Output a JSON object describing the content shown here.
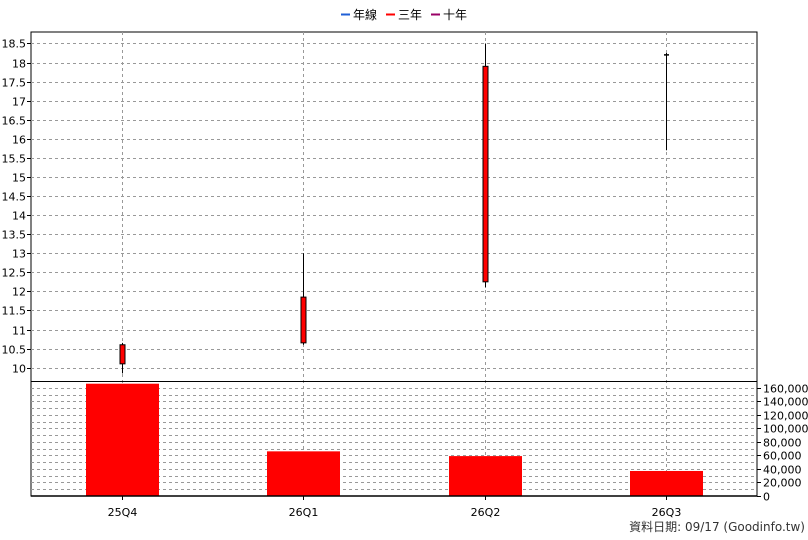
{
  "legend": [
    {
      "label": "年線",
      "color": "#1f5fd6"
    },
    {
      "label": "三年",
      "color": "#ff0000"
    },
    {
      "label": "十年",
      "color": "#990066"
    }
  ],
  "footer": "資料日期: 09/17  (Goodinfo.tw)",
  "chart_data": {
    "type": "candlestick",
    "categories": [
      "25Q4",
      "26Q1",
      "26Q2",
      "26Q3"
    ],
    "price_axis": {
      "ylim": [
        9.65,
        18.8
      ],
      "ticks": [
        "10",
        "10.5",
        "11",
        "11.5",
        "12",
        "12.5",
        "13",
        "13.5",
        "14",
        "14.5",
        "15",
        "15.5",
        "16",
        "16.5",
        "17",
        "17.5",
        "18",
        "18.5"
      ]
    },
    "ohlc": [
      {
        "period": "25Q4",
        "open": 10.1,
        "high": 10.65,
        "low": 9.85,
        "close": 10.6
      },
      {
        "period": "26Q1",
        "open": 10.65,
        "high": 13.0,
        "low": 10.6,
        "close": 11.85
      },
      {
        "period": "26Q2",
        "open": 12.25,
        "high": 18.5,
        "low": 12.1,
        "close": 17.9
      },
      {
        "period": "26Q3",
        "open": 18.2,
        "high": 18.25,
        "low": 15.7,
        "close": 18.2
      }
    ],
    "volume_axis": {
      "ylim": [
        0,
        170000
      ],
      "ticks": [
        "0",
        "20,000",
        "40,000",
        "60,000",
        "80,000",
        "100,000",
        "120,000",
        "140,000",
        "160,000"
      ]
    },
    "volume": [
      166000,
      66000,
      59000,
      37000
    ],
    "grid": true
  }
}
